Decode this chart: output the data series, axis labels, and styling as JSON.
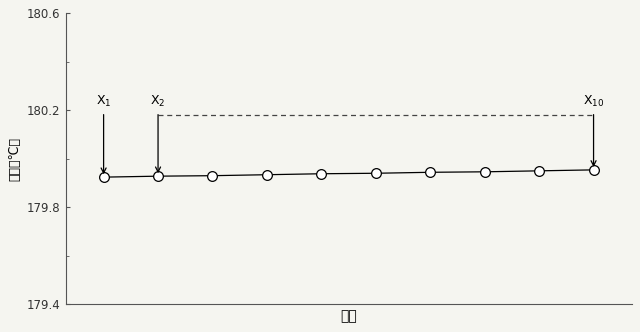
{
  "title": "",
  "xlabel": "時間",
  "ylabel": "温度（℃）",
  "ylim": [
    179.4,
    180.6
  ],
  "yticks": [
    179.4,
    179.8,
    180.2,
    180.6
  ],
  "ytick_labels": [
    "179.4",
    "179.8",
    "180.2",
    "180.6"
  ],
  "n_points": 10,
  "solid_line_y": [
    179.924,
    179.928,
    179.93,
    179.934,
    179.938,
    179.94,
    179.944,
    179.946,
    179.95,
    179.954
  ],
  "dashed_line_x": [
    2,
    10
  ],
  "dashed_line_y": 180.18,
  "annotation_x1_label": "X$_1$",
  "annotation_x2_label": "X$_2$",
  "annotation_x10_label": "X$_{10}$",
  "line_color": "#000000",
  "dashed_color": "#444444",
  "bg_color": "#f5f5f0",
  "marker": "o",
  "marker_size": 7,
  "marker_facecolor": "white",
  "marker_edgecolor": "#000000",
  "spine_color": "#555555",
  "tick_color": "#555555"
}
